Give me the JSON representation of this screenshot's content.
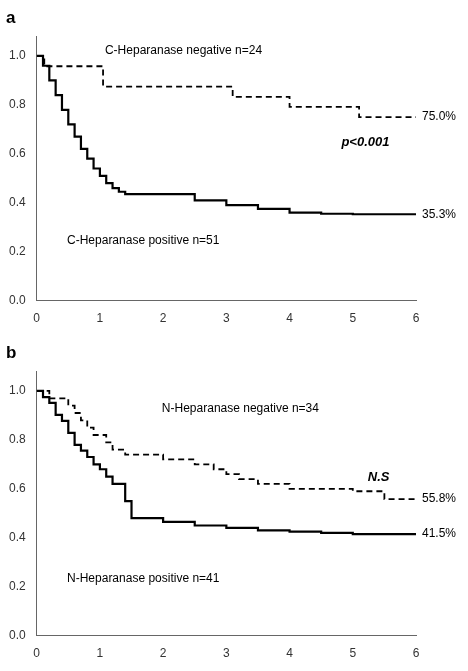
{
  "chart_data": [
    {
      "type": "step",
      "title": "a",
      "series": [
        {
          "name": "C-Heparanase negative n=24",
          "color": "#000000",
          "line_style": "dashed",
          "x": [
            0,
            0.08,
            0.12,
            1.0,
            1.05,
            3.0,
            3.1,
            4.0,
            5.0,
            5.1,
            6.0
          ],
          "values": [
            1.0,
            1.0,
            0.958,
            0.958,
            0.875,
            0.875,
            0.833,
            0.792,
            0.792,
            0.75,
            0.75
          ]
        },
        {
          "name": "C-Heparanase positive n=51",
          "color": "#000000",
          "line_style": "solid",
          "x": [
            0,
            0.1,
            0.2,
            0.3,
            0.4,
            0.5,
            0.6,
            0.7,
            0.8,
            0.9,
            1.0,
            1.1,
            1.2,
            1.3,
            1.4,
            1.5,
            1.6,
            1.8,
            2.0,
            2.5,
            3.0,
            3.5,
            4.0,
            4.5,
            5.0,
            5.5,
            6.0
          ],
          "values": [
            1.0,
            0.96,
            0.9,
            0.84,
            0.78,
            0.72,
            0.67,
            0.62,
            0.58,
            0.54,
            0.51,
            0.48,
            0.46,
            0.445,
            0.435,
            0.435,
            0.435,
            0.435,
            0.435,
            0.41,
            0.39,
            0.375,
            0.36,
            0.355,
            0.353,
            0.353,
            0.353
          ]
        }
      ],
      "annotations": [
        {
          "text": "75.0%",
          "x": 6,
          "y": 0.75
        },
        {
          "text": "35.3%",
          "x": 6,
          "y": 0.353
        },
        {
          "text": "p<0.001"
        }
      ],
      "xlim": [
        0,
        6
      ],
      "ylim": [
        0,
        1.08
      ],
      "xticks": [
        0,
        1,
        2,
        3,
        4,
        5,
        6
      ],
      "yticks": [
        {
          "value": 0,
          "label": "0.0"
        },
        0.2,
        0.4,
        0.6,
        0.8,
        {
          "value": 1,
          "label": "1.0"
        }
      ],
      "grid": false
    },
    {
      "type": "step",
      "title": "b",
      "series": [
        {
          "name": "N-Heparanase negative n=34",
          "color": "#000000",
          "line_style": "dashed",
          "x": [
            0,
            0.1,
            0.2,
            0.3,
            0.5,
            0.6,
            0.7,
            0.8,
            0.9,
            1.0,
            1.1,
            1.2,
            1.4,
            1.5,
            2.0,
            2.5,
            2.8,
            3.0,
            3.2,
            3.5,
            4.0,
            4.5,
            5.0,
            5.5,
            6.0
          ],
          "values": [
            1.0,
            1.0,
            0.97,
            0.97,
            0.94,
            0.91,
            0.88,
            0.85,
            0.82,
            0.82,
            0.79,
            0.76,
            0.74,
            0.74,
            0.72,
            0.7,
            0.68,
            0.66,
            0.64,
            0.62,
            0.6,
            0.6,
            0.59,
            0.558,
            0.558
          ]
        },
        {
          "name": "N-Heparanase positive n=41",
          "color": "#000000",
          "line_style": "solid",
          "x": [
            0,
            0.1,
            0.2,
            0.3,
            0.4,
            0.5,
            0.6,
            0.7,
            0.8,
            0.9,
            1.0,
            1.1,
            1.2,
            1.4,
            1.5,
            1.6,
            1.8,
            2.0,
            2.5,
            3.0,
            3.5,
            4.0,
            4.5,
            5.0,
            5.5,
            6.0
          ],
          "values": [
            1.0,
            0.975,
            0.951,
            0.902,
            0.878,
            0.829,
            0.78,
            0.756,
            0.73,
            0.7,
            0.68,
            0.65,
            0.62,
            0.55,
            0.48,
            0.48,
            0.48,
            0.465,
            0.45,
            0.44,
            0.43,
            0.425,
            0.42,
            0.415,
            0.415,
            0.415
          ]
        }
      ],
      "annotations": [
        {
          "text": "55.8%",
          "x": 6,
          "y": 0.558
        },
        {
          "text": "41.5%",
          "x": 6,
          "y": 0.415
        },
        {
          "text": "N.S"
        }
      ],
      "xlim": [
        0,
        6
      ],
      "ylim": [
        0,
        1.08
      ],
      "xticks": [
        0,
        1,
        2,
        3,
        4,
        5,
        6
      ],
      "yticks": [
        {
          "value": 0,
          "label": "0.0"
        },
        0.2,
        0.4,
        0.6,
        0.8,
        {
          "value": 1,
          "label": "1.0"
        }
      ],
      "grid": false
    }
  ]
}
